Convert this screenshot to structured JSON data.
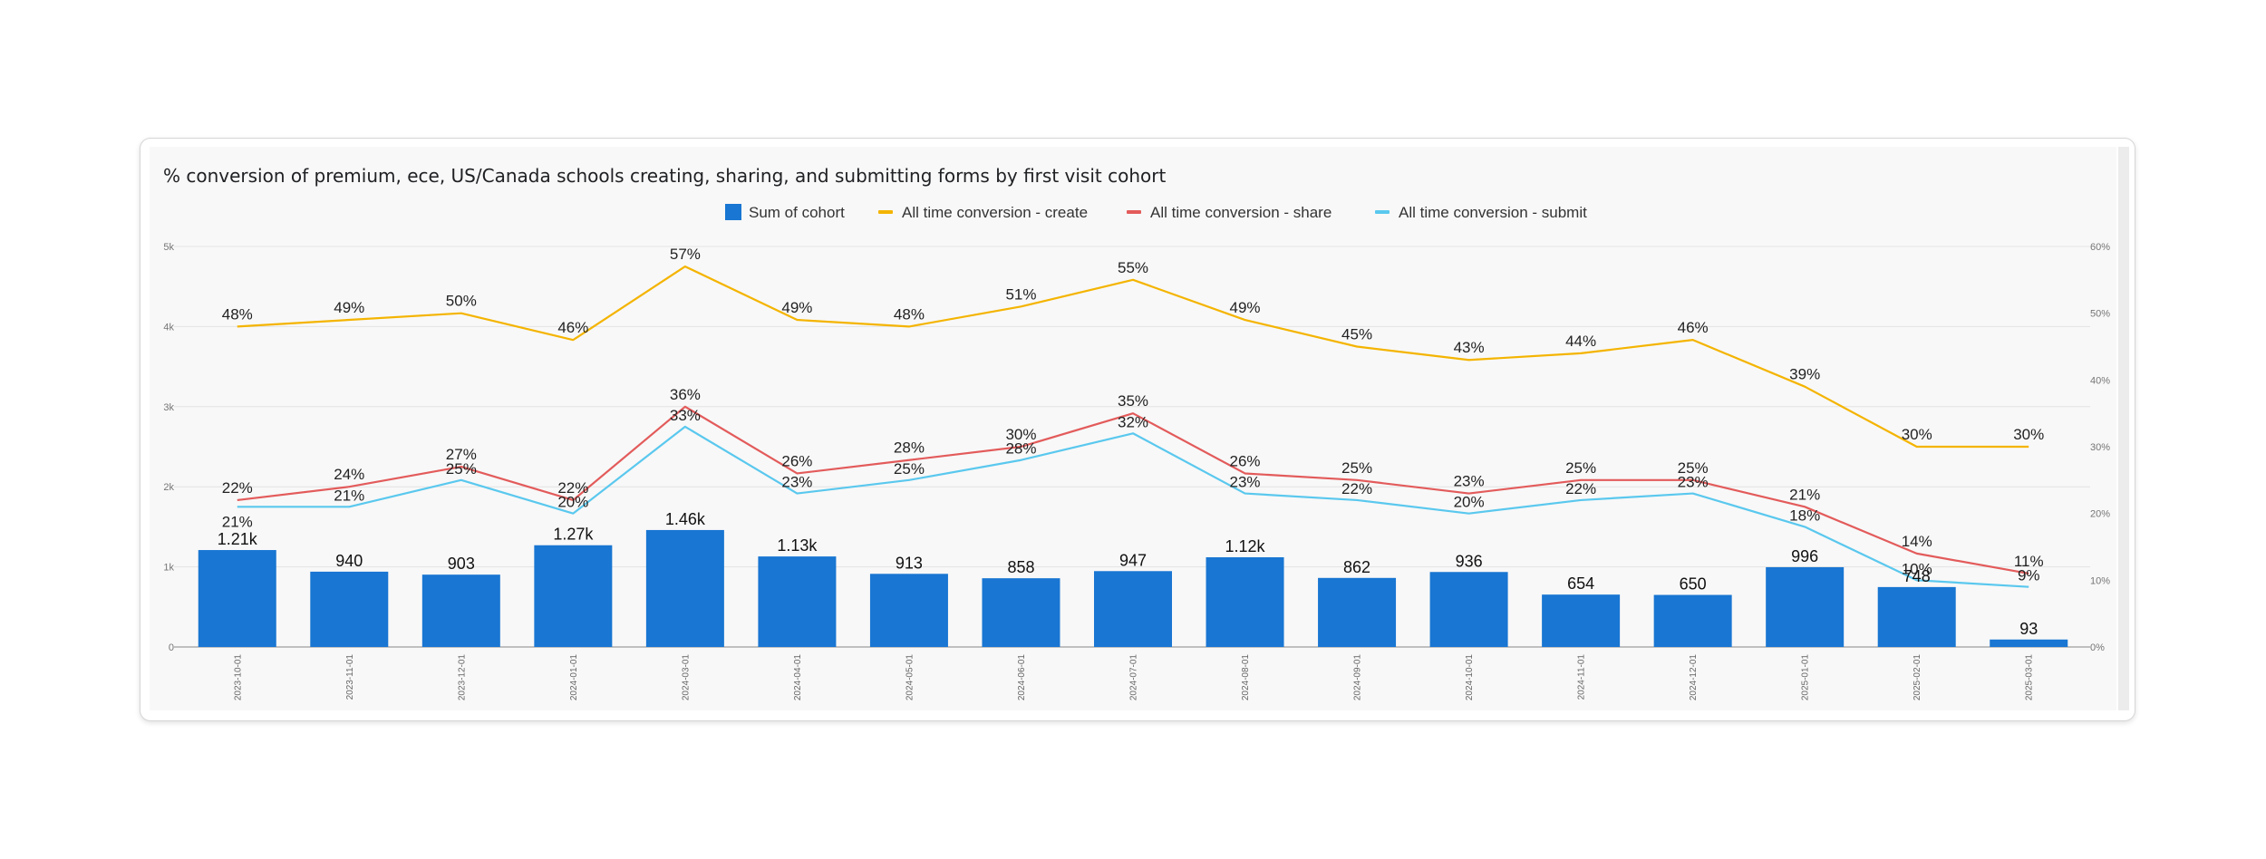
{
  "chart_data": {
    "type": "bar+line",
    "title": "% conversion of premium, ece, US/Canada schools creating, sharing, and submitting forms by first visit cohort",
    "categories": [
      "2023-10-01",
      "2023-11-01",
      "2023-12-01",
      "2024-01-01",
      "2024-03-01",
      "2024-04-01",
      "2024-05-01",
      "2024-06-01",
      "2024-07-01",
      "2024-08-01",
      "2024-09-01",
      "2024-10-01",
      "2024-11-01",
      "2024-12-01",
      "2025-01-01",
      "2025-02-01",
      "2025-03-01"
    ],
    "left_axis": {
      "min": 0,
      "max": 5000,
      "ticks": [
        0,
        1000,
        2000,
        3000,
        4000,
        5000
      ],
      "tick_labels": [
        "0",
        "1k",
        "2k",
        "3k",
        "4k",
        "5k"
      ]
    },
    "right_axis": {
      "min": 0,
      "max": 60,
      "ticks": [
        0,
        10,
        20,
        30,
        40,
        50,
        60
      ],
      "tick_labels": [
        "0%",
        "10%",
        "20%",
        "30%",
        "40%",
        "50%",
        "60%"
      ]
    },
    "bars": {
      "name": "Sum of cohort",
      "color": "#1976d2",
      "values": [
        1210,
        940,
        903,
        1270,
        1460,
        1130,
        913,
        858,
        947,
        1120,
        862,
        936,
        654,
        650,
        996,
        748,
        93
      ],
      "labels": [
        "1.21k",
        "940",
        "903",
        "1.27k",
        "1.46k",
        "1.13k",
        "913",
        "858",
        "947",
        "1.12k",
        "862",
        "936",
        "654",
        "650",
        "996",
        "748",
        "93"
      ]
    },
    "series": [
      {
        "name": "All time conversion - create",
        "color": "#f4b400",
        "values": [
          48,
          49,
          50,
          46,
          57,
          49,
          48,
          51,
          55,
          49,
          45,
          43,
          44,
          46,
          39,
          30,
          30
        ],
        "labels": [
          "48%",
          "49%",
          "50%",
          "46%",
          "57%",
          "49%",
          "48%",
          "51%",
          "55%",
          "49%",
          "45%",
          "43%",
          "44%",
          "46%",
          "39%",
          "30%",
          "30%"
        ]
      },
      {
        "name": "All time conversion - share",
        "color": "#e35b5b",
        "values": [
          22,
          24,
          27,
          22,
          36,
          26,
          28,
          30,
          35,
          26,
          25,
          23,
          25,
          25,
          21,
          14,
          11
        ],
        "labels": [
          "22%",
          "24%",
          "27%",
          "22%",
          "36%",
          "26%",
          "28%",
          "30%",
          "35%",
          "26%",
          "25%",
          "23%",
          "25%",
          "25%",
          "21%",
          "14%",
          "11%"
        ]
      },
      {
        "name": "All time conversion - submit",
        "color": "#5ac8ee",
        "values": [
          21,
          21,
          25,
          20,
          33,
          23,
          25,
          28,
          32,
          23,
          22,
          20,
          22,
          23,
          18,
          10,
          9
        ],
        "labels": [
          "21%",
          "21%",
          "25%",
          "20%",
          "33%",
          "23%",
          "25%",
          "28%",
          "32%",
          "23%",
          "22%",
          "20%",
          "22%",
          "23%",
          "18%",
          "10%",
          "9%"
        ]
      }
    ]
  }
}
